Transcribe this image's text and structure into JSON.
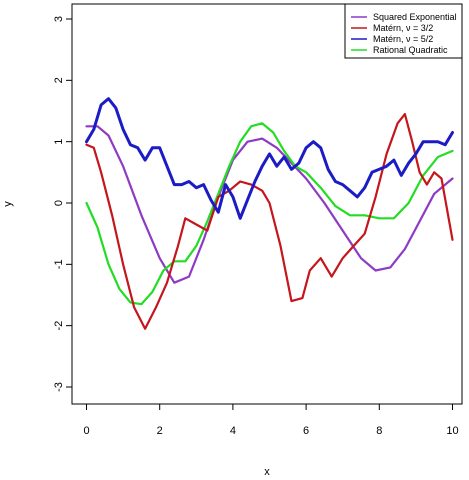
{
  "chart_data": {
    "type": "line",
    "title": "",
    "xlabel": "x",
    "ylabel": "y",
    "xlim": [
      0,
      10
    ],
    "ylim": [
      -3,
      3
    ],
    "x_ticks": [
      "0",
      "2",
      "4",
      "6",
      "8",
      "10"
    ],
    "y_ticks": [
      "-3",
      "-2",
      "-1",
      "0",
      "1",
      "2",
      "3"
    ],
    "legend_position": "top-right",
    "series": [
      {
        "name": "Squared Exponential",
        "color": "#8e3bc4",
        "x": [
          0,
          0.3,
          0.6,
          1.0,
          1.5,
          2.0,
          2.4,
          2.8,
          3.2,
          3.6,
          4.0,
          4.4,
          4.8,
          5.2,
          5.6,
          6.0,
          6.5,
          7.0,
          7.5,
          7.9,
          8.3,
          8.7,
          9.1,
          9.5,
          10.0
        ],
        "y": [
          1.25,
          1.25,
          1.1,
          0.6,
          -0.2,
          -0.9,
          -1.3,
          -1.2,
          -0.6,
          0.1,
          0.7,
          1.0,
          1.05,
          0.9,
          0.65,
          0.4,
          0.0,
          -0.45,
          -0.9,
          -1.1,
          -1.05,
          -0.75,
          -0.3,
          0.15,
          0.4
        ]
      },
      {
        "name": "Matérn, ν = 3/2",
        "color": "#c4161c",
        "x": [
          0,
          0.2,
          0.4,
          0.7,
          1.0,
          1.3,
          1.6,
          1.9,
          2.2,
          2.5,
          2.7,
          3.0,
          3.3,
          3.6,
          3.9,
          4.2,
          4.5,
          4.8,
          5.0,
          5.3,
          5.6,
          5.9,
          6.1,
          6.4,
          6.7,
          7.0,
          7.3,
          7.6,
          7.9,
          8.2,
          8.5,
          8.7,
          8.9,
          9.1,
          9.3,
          9.5,
          9.7,
          10.0
        ],
        "y": [
          0.95,
          0.9,
          0.5,
          -0.2,
          -1.0,
          -1.7,
          -2.05,
          -1.7,
          -1.3,
          -0.7,
          -0.25,
          -0.35,
          -0.45,
          0.1,
          0.2,
          0.35,
          0.3,
          0.2,
          0.0,
          -0.7,
          -1.6,
          -1.55,
          -1.1,
          -0.9,
          -1.2,
          -0.9,
          -0.7,
          -0.5,
          0.1,
          0.8,
          1.3,
          1.45,
          1.0,
          0.5,
          0.3,
          0.5,
          0.4,
          -0.6
        ]
      },
      {
        "name": "Matérn, ν = 5/2",
        "color": "#1c1cc4",
        "x": [
          0,
          0.2,
          0.4,
          0.6,
          0.8,
          1.0,
          1.2,
          1.4,
          1.6,
          1.8,
          2.0,
          2.2,
          2.4,
          2.6,
          2.8,
          3.0,
          3.2,
          3.4,
          3.6,
          3.8,
          4.0,
          4.2,
          4.4,
          4.6,
          4.8,
          5.0,
          5.2,
          5.4,
          5.6,
          5.8,
          6.0,
          6.2,
          6.4,
          6.6,
          6.8,
          7.0,
          7.2,
          7.4,
          7.6,
          7.8,
          8.0,
          8.2,
          8.4,
          8.6,
          8.8,
          9.0,
          9.2,
          9.4,
          9.6,
          9.8,
          10.0
        ],
        "y": [
          1.0,
          1.2,
          1.6,
          1.7,
          1.55,
          1.2,
          0.95,
          0.9,
          0.7,
          0.9,
          0.9,
          0.6,
          0.3,
          0.3,
          0.35,
          0.25,
          0.3,
          0.05,
          -0.15,
          0.3,
          0.1,
          -0.25,
          0.05,
          0.35,
          0.6,
          0.8,
          0.6,
          0.75,
          0.55,
          0.65,
          0.9,
          1.0,
          0.9,
          0.55,
          0.35,
          0.3,
          0.2,
          0.1,
          0.25,
          0.5,
          0.55,
          0.6,
          0.7,
          0.45,
          0.65,
          0.8,
          1.0,
          1.0,
          1.0,
          0.95,
          1.15
        ]
      },
      {
        "name": "Rational Quadratic",
        "color": "#22dd22",
        "x": [
          0,
          0.3,
          0.6,
          0.9,
          1.2,
          1.5,
          1.8,
          2.1,
          2.4,
          2.7,
          3.0,
          3.3,
          3.6,
          3.9,
          4.2,
          4.5,
          4.8,
          5.1,
          5.4,
          5.7,
          6.0,
          6.4,
          6.8,
          7.2,
          7.6,
          8.0,
          8.4,
          8.8,
          9.2,
          9.6,
          10.0
        ],
        "y": [
          0.0,
          -0.4,
          -1.0,
          -1.4,
          -1.62,
          -1.65,
          -1.45,
          -1.1,
          -0.95,
          -0.95,
          -0.7,
          -0.3,
          0.15,
          0.6,
          1.0,
          1.25,
          1.3,
          1.15,
          0.85,
          0.6,
          0.5,
          0.25,
          -0.05,
          -0.2,
          -0.2,
          -0.25,
          -0.25,
          0.0,
          0.45,
          0.75,
          0.85
        ]
      }
    ]
  }
}
